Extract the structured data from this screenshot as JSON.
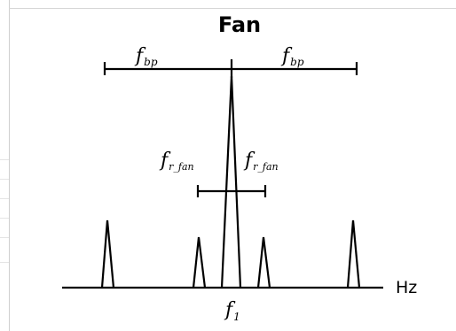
{
  "title": "Fan",
  "axis_unit": "Hz",
  "labels": {
    "f1": {
      "main": "f",
      "sub": "1"
    },
    "fbp_left": {
      "main": "f",
      "sub": "bp"
    },
    "fbp_right": {
      "main": "f",
      "sub": "bp"
    },
    "frfan_left": {
      "main": "f",
      "sub": "r_fan"
    },
    "frfan_right": {
      "main": "f",
      "sub": "r_fan"
    }
  }
}
